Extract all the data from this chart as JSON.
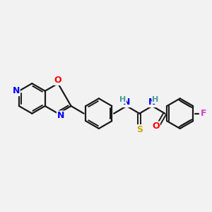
{
  "bg_color": "#f2f2f2",
  "bond_color": "#1a1a1a",
  "atom_colors": {
    "N": "#0000ff",
    "O": "#ff0000",
    "S": "#ccaa00",
    "F": "#cc44cc",
    "H": "#4a9a9a",
    "C": "#1a1a1a"
  },
  "lw": 1.6,
  "dlw": 1.4,
  "doff": 2.8,
  "fs": 8.5,
  "figsize": [
    3.0,
    3.0
  ],
  "dpi": 100
}
